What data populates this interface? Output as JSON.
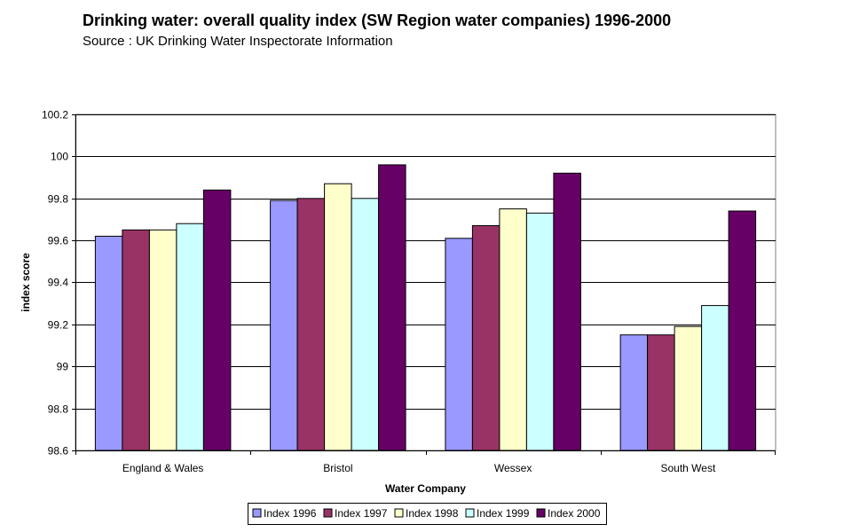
{
  "chart_data": {
    "type": "bar",
    "title": "Drinking water: overall quality index (SW Region water companies) 1996-2000",
    "subtitle": "Source : UK Drinking Water Inspectorate Information",
    "xlabel": "Water Company",
    "ylabel": "index score",
    "categories": [
      "England & Wales",
      "Bristol",
      "Wessex",
      "South West"
    ],
    "ylim": [
      98.6,
      100.2
    ],
    "yticks": [
      "98.6",
      "98.8",
      "99",
      "99.2",
      "99.4",
      "99.6",
      "99.8",
      "100",
      "100.2"
    ],
    "grid": true,
    "legend_position": "bottom",
    "series": [
      {
        "name": "Index 1996",
        "color": "#9999ff",
        "values": [
          99.62,
          99.79,
          99.61,
          99.15
        ]
      },
      {
        "name": "Index 1997",
        "color": "#993366",
        "values": [
          99.65,
          99.8,
          99.67,
          99.15
        ]
      },
      {
        "name": "Index 1998",
        "color": "#ffffcc",
        "values": [
          99.65,
          99.87,
          99.75,
          99.19
        ]
      },
      {
        "name": "Index 1999",
        "color": "#ccffff",
        "values": [
          99.68,
          99.8,
          99.73,
          99.29
        ]
      },
      {
        "name": "Index 2000",
        "color": "#660066",
        "values": [
          99.84,
          99.96,
          99.92,
          99.74
        ]
      }
    ]
  }
}
